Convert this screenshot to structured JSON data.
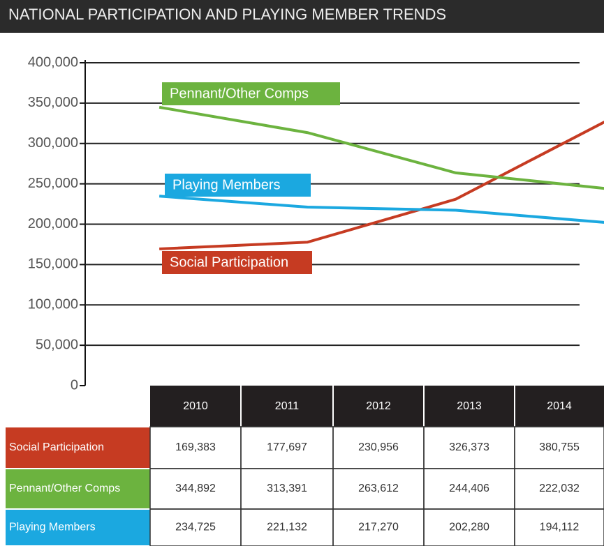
{
  "chart_data": {
    "type": "line",
    "title": "NATIONAL PARTICIPATION AND PLAYING MEMBER TRENDS",
    "x": [
      2010,
      2011,
      2012,
      2013,
      2014
    ],
    "xlim": [
      2009.5,
      2013
    ],
    "ylim": [
      0,
      400000
    ],
    "yticks": [
      0,
      {
        "value": 50000,
        "label": "50,000"
      },
      {
        "value": 100000,
        "label": "100,000"
      },
      {
        "value": 150000,
        "label": "150,000"
      },
      {
        "value": 200000,
        "label": "200,000"
      },
      {
        "value": 250000,
        "label": "250,000"
      },
      {
        "value": 300000,
        "label": "300,000"
      },
      {
        "value": 350000,
        "label": "350,000"
      },
      {
        "value": 400000,
        "label": "400,000"
      }
    ],
    "grid": true,
    "series": [
      {
        "name": "Social Participation",
        "color": "#c63b22",
        "values": [
          169383,
          177697,
          230956,
          326373,
          380755
        ],
        "value_labels": [
          "169,383",
          "177,697",
          "230,956",
          "326,373",
          "380,755"
        ]
      },
      {
        "name": "Pennant/Other Comps",
        "color": "#6cb33f",
        "values": [
          344892,
          313391,
          263612,
          244406,
          222032
        ],
        "value_labels": [
          "344,892",
          "313,391",
          "263,612",
          "244,406",
          "222,032"
        ]
      },
      {
        "name": "Playing Members",
        "color": "#1ba8e0",
        "values": [
          234725,
          221132,
          217270,
          202280,
          194112
        ],
        "value_labels": [
          "234,725",
          "221,132",
          "217,270",
          "202,280",
          "194,112"
        ]
      }
    ]
  }
}
